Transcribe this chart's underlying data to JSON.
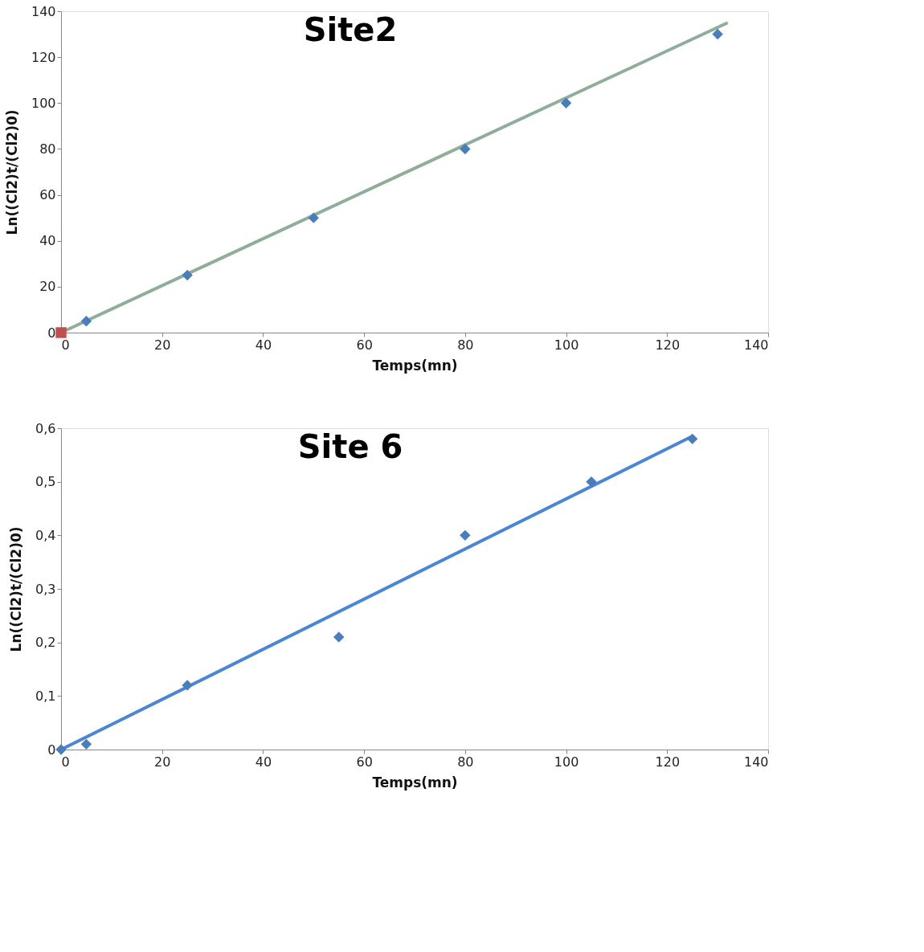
{
  "chart_data": [
    {
      "type": "scatter",
      "title": "Site2",
      "xlabel": "Temps(mn)",
      "ylabel": "Ln((Cl2)t/(Cl2)0)",
      "xlim": [
        0,
        140
      ],
      "ylim": [
        0,
        140
      ],
      "xticks": [
        0,
        20,
        40,
        60,
        80,
        100,
        120,
        140
      ],
      "yticks": [
        0,
        20,
        40,
        60,
        80,
        100,
        120,
        140
      ],
      "series": [
        {
          "type": "line",
          "color": "#8fae9a",
          "line_style": "solid",
          "x": [
            0,
            132
          ],
          "values": [
            0,
            135
          ]
        },
        {
          "color": "#4a7ebb",
          "marker": "diamond",
          "x": [
            5,
            25,
            50,
            80,
            100,
            130
          ],
          "values": [
            5,
            25,
            50,
            80,
            100,
            130
          ]
        },
        {
          "color": "#c0504d",
          "marker": "square",
          "x": [
            0
          ],
          "values": [
            0
          ]
        }
      ]
    },
    {
      "type": "scatter",
      "title": "Site 6",
      "xlabel": "Temps(mn)",
      "ylabel": "Ln((Cl2)t/(Cl2)0)",
      "xlim": [
        0,
        140
      ],
      "ylim": [
        0,
        0.6
      ],
      "xticks": [
        0,
        20,
        40,
        60,
        80,
        100,
        120,
        140
      ],
      "yticks": [
        0,
        {
          "value": 0.1,
          "label": "0,1"
        },
        {
          "value": 0.2,
          "label": "0,2"
        },
        {
          "value": 0.3,
          "label": "0,3"
        },
        {
          "value": 0.4,
          "label": "0,4"
        },
        {
          "value": 0.5,
          "label": "0,5"
        },
        {
          "value": 0.6,
          "label": "0,6"
        }
      ],
      "series": [
        {
          "type": "line",
          "color": "#4a86d4",
          "line_style": "solid",
          "x": [
            0,
            125
          ],
          "values": [
            0,
            0.585
          ]
        },
        {
          "color": "#4a7ebb",
          "marker": "diamond",
          "x": [
            0,
            5,
            25,
            55,
            80,
            105,
            125
          ],
          "values": [
            0,
            0.01,
            0.12,
            0.21,
            0.4,
            0.5,
            0.58
          ]
        }
      ]
    }
  ]
}
